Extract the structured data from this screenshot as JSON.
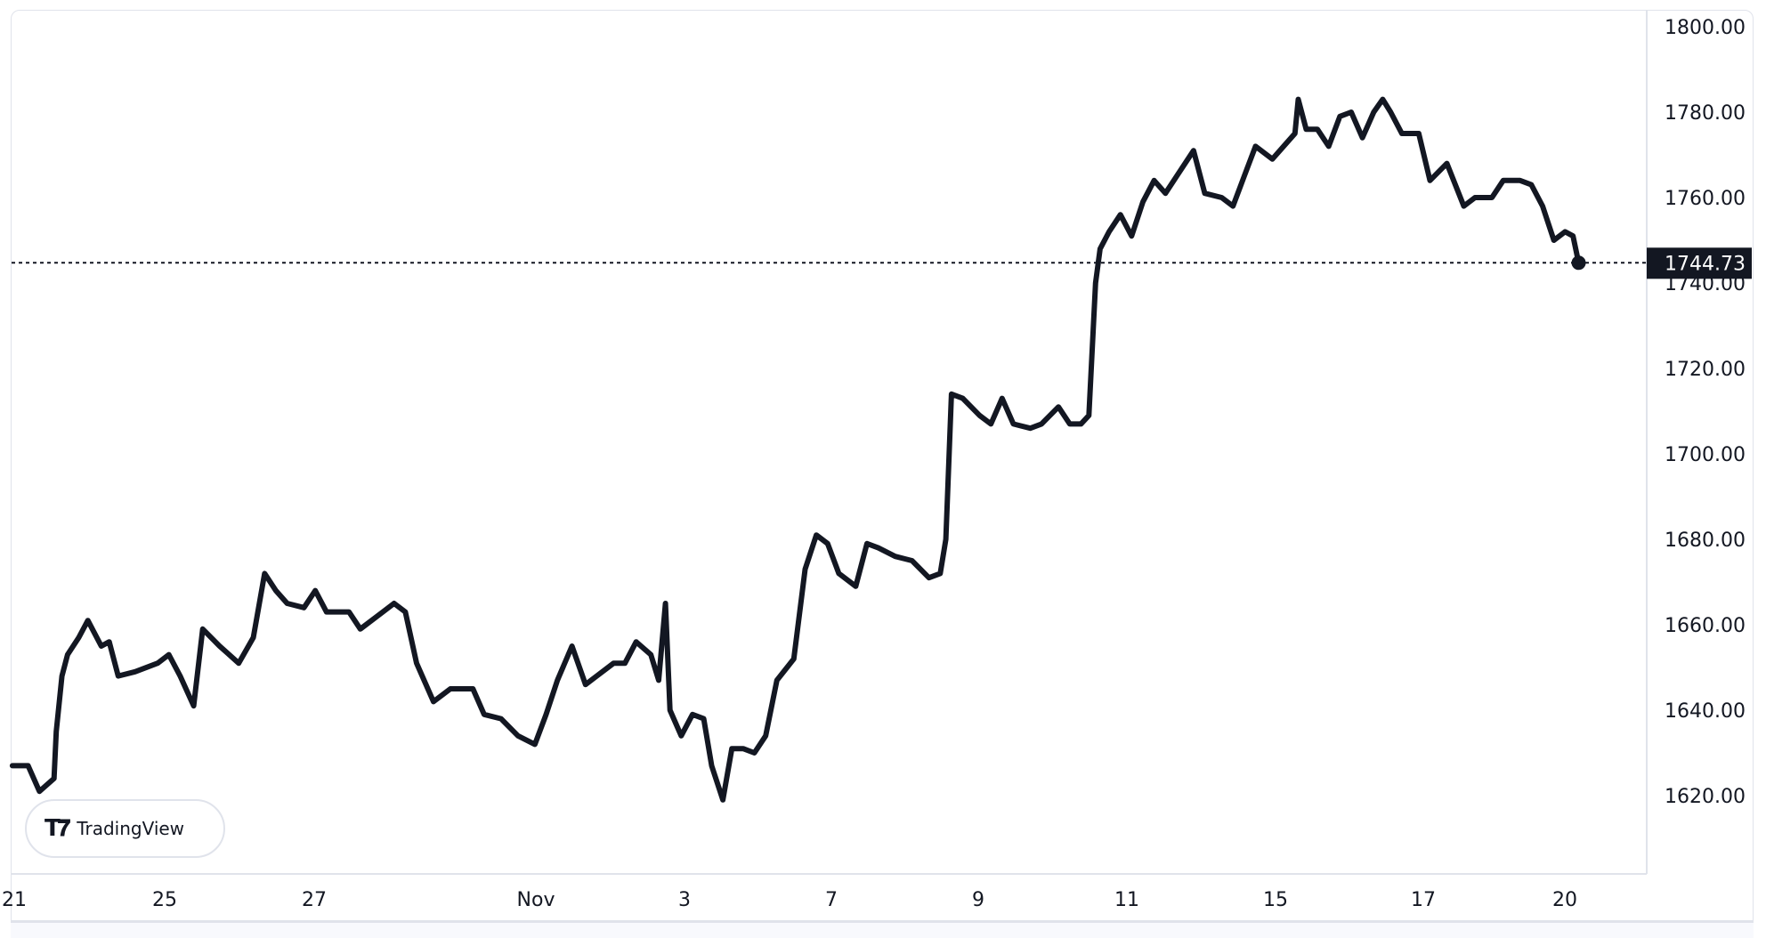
{
  "chart_data": {
    "type": "line",
    "title": "",
    "xlabel": "",
    "ylabel": "",
    "ylim": [
      1604,
      1804
    ],
    "grid": false,
    "line_color": "#131722",
    "yticks": [
      "1800.00",
      "1780.00",
      "1760.00",
      "1740.00",
      "1720.00",
      "1700.00",
      "1680.00",
      "1660.00",
      "1640.00",
      "1620.00"
    ],
    "xticks": [
      "21",
      "25",
      "27",
      "Nov",
      "3",
      "7",
      "9",
      "11",
      "15",
      "17",
      "20"
    ],
    "last_price": 1744.73,
    "last_price_label": "1744.73",
    "values": [
      1627,
      1627,
      1621,
      1624,
      1635,
      1648,
      1653,
      1657,
      1661,
      1655,
      1656,
      1648,
      1649,
      1651,
      1653,
      1648,
      1641,
      1659,
      1655,
      1651,
      1657,
      1672,
      1668,
      1665,
      1664,
      1668,
      1663,
      1663,
      1659,
      1663,
      1665,
      1663,
      1651,
      1642,
      1645,
      1645,
      1639,
      1638,
      1634,
      1632,
      1639,
      1647,
      1655,
      1646,
      1648,
      1651,
      1651,
      1656,
      1653,
      1647,
      1665,
      1640,
      1634,
      1639,
      1638,
      1627,
      1619,
      1631,
      1631,
      1630,
      1634,
      1647,
      1652,
      1673,
      1681,
      1679,
      1672,
      1669,
      1679,
      1678,
      1676,
      1675,
      1671,
      1672,
      1680,
      1714,
      1713,
      1709,
      1707,
      1713,
      1707,
      1706,
      1707,
      1711,
      1707,
      1707,
      1709,
      1740,
      1748,
      1752,
      1756,
      1751,
      1759,
      1764,
      1761,
      1765,
      1771,
      1761,
      1760,
      1758,
      1765,
      1772,
      1769,
      1772,
      1775,
      1783,
      1776,
      1776,
      1772,
      1779,
      1780,
      1774,
      1780,
      1783,
      1780,
      1775,
      1775,
      1764,
      1768,
      1758,
      1760,
      1760,
      1764,
      1764,
      1763,
      1758,
      1750,
      1752,
      1751,
      1744.73
    ]
  },
  "branding": {
    "logo": "TV",
    "name": "TradingView"
  }
}
